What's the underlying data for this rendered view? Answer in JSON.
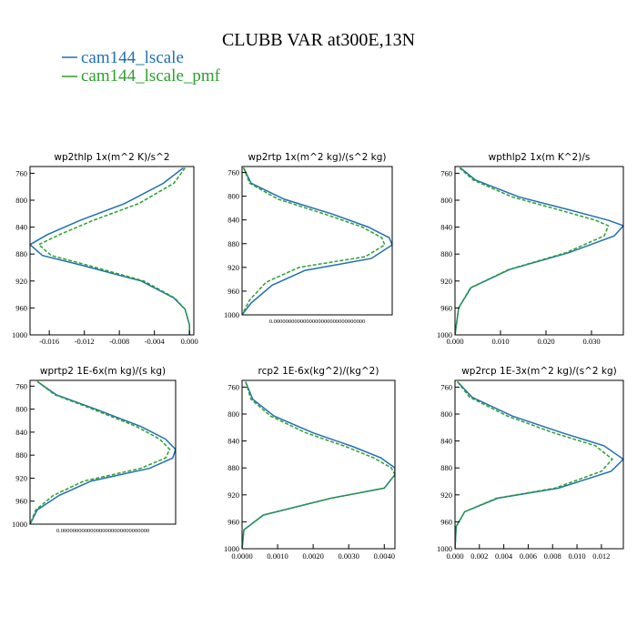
{
  "title": "CLUBB VAR at300E,13N",
  "legend": [
    {
      "name": "cam144_lscale",
      "color": "#1f6fb4"
    },
    {
      "name": "cam144_lscale_pmf",
      "color": "#2ca02c"
    }
  ],
  "chart_data": [
    {
      "type": "line",
      "title": "wp2thlp  1x(m^2 K)/s^2",
      "yticks": [
        "760",
        "800",
        "840",
        "880",
        "920",
        "960",
        "1000"
      ],
      "xticks": [
        "-0.016",
        "-0.012",
        "-0.008",
        "-0.004",
        "0.000"
      ],
      "xlim": [
        -0.0182,
        0.0005
      ],
      "ylim": [
        1000,
        750
      ],
      "series": [
        {
          "name": "cam144_lscale",
          "points": [
            [
              -0.0007,
              752
            ],
            [
              -0.003,
              775
            ],
            [
              -0.0074,
              805
            ],
            [
              -0.0125,
              830
            ],
            [
              -0.0162,
              851
            ],
            [
              -0.0182,
              866
            ],
            [
              -0.0168,
              882
            ],
            [
              -0.0125,
              896
            ],
            [
              -0.0055,
              920
            ],
            [
              -0.0018,
              945
            ],
            [
              -0.0005,
              962
            ],
            [
              0.0,
              985
            ],
            [
              0.0,
              1000
            ]
          ]
        },
        {
          "name": "cam144_lscale_pmf",
          "points": [
            [
              -0.0005,
              752
            ],
            [
              -0.0018,
              775
            ],
            [
              -0.0058,
              805
            ],
            [
              -0.011,
              830
            ],
            [
              -0.0148,
              851
            ],
            [
              -0.0172,
              866
            ],
            [
              -0.0158,
              882
            ],
            [
              -0.0118,
              896
            ],
            [
              -0.0052,
              920
            ],
            [
              -0.0017,
              945
            ],
            [
              -0.0005,
              962
            ],
            [
              0.0,
              985
            ],
            [
              0.0,
              1000
            ]
          ]
        }
      ]
    },
    {
      "type": "line",
      "title": "wp2rtp  1x(m^2 kg)/(s^2 kg)",
      "yticks": [
        "760",
        "800",
        "840",
        "880",
        "920",
        "960",
        "1000"
      ],
      "xticks": [
        "0.0000000000000000000000000000000"
      ],
      "xlim": [
        0,
        1
      ],
      "ylim": [
        1000,
        750
      ],
      "series": [
        {
          "name": "cam144_lscale",
          "points": [
            [
              0.01,
              752
            ],
            [
              0.06,
              778
            ],
            [
              0.28,
              805
            ],
            [
              0.6,
              830
            ],
            [
              0.84,
              852
            ],
            [
              0.98,
              870
            ],
            [
              1.0,
              882
            ],
            [
              0.86,
              905
            ],
            [
              0.42,
              925
            ],
            [
              0.2,
              950
            ],
            [
              0.06,
              980
            ],
            [
              0.0,
              1000
            ]
          ]
        },
        {
          "name": "cam144_lscale_pmf",
          "points": [
            [
              0.01,
              752
            ],
            [
              0.05,
              778
            ],
            [
              0.24,
              805
            ],
            [
              0.55,
              830
            ],
            [
              0.8,
              852
            ],
            [
              0.93,
              870
            ],
            [
              0.95,
              882
            ],
            [
              0.82,
              902
            ],
            [
              0.38,
              920
            ],
            [
              0.16,
              945
            ],
            [
              0.05,
              975
            ],
            [
              0.0,
              1000
            ]
          ]
        }
      ]
    },
    {
      "type": "line",
      "title": "wpthlp2  1x(m K^2)/s",
      "yticks": [
        "760",
        "800",
        "840",
        "880",
        "920",
        "960",
        "1000"
      ],
      "xticks": [
        "0.000",
        "0.010",
        "0.020",
        "0.030"
      ],
      "xlim": [
        0,
        0.037
      ],
      "ylim": [
        1000,
        750
      ],
      "series": [
        {
          "name": "cam144_lscale",
          "points": [
            [
              0.0012,
              752
            ],
            [
              0.0045,
              770
            ],
            [
              0.014,
              795
            ],
            [
              0.0255,
              815
            ],
            [
              0.0338,
              830
            ],
            [
              0.037,
              838
            ],
            [
              0.035,
              853
            ],
            [
              0.025,
              878
            ],
            [
              0.012,
              903
            ],
            [
              0.0035,
              930
            ],
            [
              0.0008,
              960
            ],
            [
              0.0,
              1000
            ]
          ]
        },
        {
          "name": "cam144_lscale_pmf",
          "points": [
            [
              0.001,
              752
            ],
            [
              0.004,
              770
            ],
            [
              0.0125,
              795
            ],
            [
              0.0232,
              815
            ],
            [
              0.031,
              830
            ],
            [
              0.0337,
              838
            ],
            [
              0.0328,
              853
            ],
            [
              0.0244,
              878
            ],
            [
              0.0118,
              903
            ],
            [
              0.0034,
              930
            ],
            [
              0.0008,
              960
            ],
            [
              0.0,
              1000
            ]
          ]
        }
      ]
    },
    {
      "type": "line",
      "title": "wprtp2  1E-6x(m kg)/(s kg)",
      "yticks": [
        "760",
        "800",
        "840",
        "880",
        "920",
        "960",
        "1000"
      ],
      "xticks": [
        "0.000000000000000000000000000000"
      ],
      "xlim": [
        0,
        1
      ],
      "ylim": [
        1000,
        750
      ],
      "series": [
        {
          "name": "cam144_lscale",
          "points": [
            [
              0.05,
              752
            ],
            [
              0.18,
              775
            ],
            [
              0.45,
              800
            ],
            [
              0.76,
              830
            ],
            [
              0.93,
              852
            ],
            [
              1.0,
              870
            ],
            [
              0.98,
              885
            ],
            [
              0.82,
              903
            ],
            [
              0.42,
              925
            ],
            [
              0.2,
              950
            ],
            [
              0.05,
              975
            ],
            [
              0.0,
              1000
            ]
          ]
        },
        {
          "name": "cam144_lscale_pmf",
          "points": [
            [
              0.05,
              752
            ],
            [
              0.17,
              775
            ],
            [
              0.43,
              800
            ],
            [
              0.73,
              830
            ],
            [
              0.89,
              852
            ],
            [
              0.96,
              870
            ],
            [
              0.93,
              885
            ],
            [
              0.76,
              903
            ],
            [
              0.37,
              925
            ],
            [
              0.16,
              950
            ],
            [
              0.04,
              975
            ],
            [
              0.0,
              1000
            ]
          ]
        }
      ]
    },
    {
      "type": "line",
      "title": "rcp2  1E-6x(kg^2)/(kg^2)",
      "yticks": [
        "760",
        "800",
        "840",
        "880",
        "920",
        "960",
        "1000"
      ],
      "xticks": [
        "0.0000",
        "0.0010",
        "0.0020",
        "0.0030",
        "0.0040"
      ],
      "xlim": [
        0,
        0.0043
      ],
      "ylim": [
        1000,
        750
      ],
      "series": [
        {
          "name": "cam144_lscale",
          "points": [
            [
              0.0001,
              752
            ],
            [
              0.0003,
              778
            ],
            [
              0.0009,
              803
            ],
            [
              0.002,
              828
            ],
            [
              0.0031,
              848
            ],
            [
              0.0039,
              865
            ],
            [
              0.0043,
              880
            ],
            [
              0.0043,
              890
            ],
            [
              0.004,
              910
            ],
            [
              0.0025,
              925
            ],
            [
              0.0006,
              950
            ],
            [
              5e-05,
              972
            ],
            [
              0.0,
              1000
            ]
          ]
        },
        {
          "name": "cam144_lscale_pmf",
          "points": [
            [
              0.0001,
              752
            ],
            [
              0.00025,
              778
            ],
            [
              0.0008,
              803
            ],
            [
              0.0018,
              828
            ],
            [
              0.0029,
              848
            ],
            [
              0.0037,
              865
            ],
            [
              0.0042,
              880
            ],
            [
              0.0043,
              890
            ],
            [
              0.004,
              910
            ],
            [
              0.0025,
              925
            ],
            [
              0.0006,
              950
            ],
            [
              5e-05,
              972
            ],
            [
              0.0,
              1000
            ]
          ]
        }
      ]
    },
    {
      "type": "line",
      "title": "wp2rcp  1E-3x(m^2 kg)/(s^2 kg)",
      "yticks": [
        "760",
        "800",
        "840",
        "880",
        "920",
        "960",
        "1000"
      ],
      "xticks": [
        "0.000",
        "0.002",
        "0.004",
        "0.006",
        "0.008",
        "0.010",
        "0.012"
      ],
      "xlim": [
        0,
        0.0138
      ],
      "ylim": [
        1000,
        750
      ],
      "series": [
        {
          "name": "cam144_lscale",
          "points": [
            [
              0.0002,
              752
            ],
            [
              0.0014,
              775
            ],
            [
              0.0047,
              803
            ],
            [
              0.0088,
              828
            ],
            [
              0.0122,
              847
            ],
            [
              0.0138,
              867
            ],
            [
              0.0128,
              885
            ],
            [
              0.0085,
              910
            ],
            [
              0.0035,
              925
            ],
            [
              0.0008,
              945
            ],
            [
              0.0001,
              967
            ],
            [
              0.0,
              1000
            ]
          ]
        },
        {
          "name": "cam144_lscale_pmf",
          "points": [
            [
              0.0002,
              752
            ],
            [
              0.0012,
              775
            ],
            [
              0.0043,
              803
            ],
            [
              0.0081,
              828
            ],
            [
              0.0115,
              847
            ],
            [
              0.0129,
              867
            ],
            [
              0.012,
              885
            ],
            [
              0.0082,
              910
            ],
            [
              0.0034,
              925
            ],
            [
              0.0008,
              945
            ],
            [
              0.0001,
              967
            ],
            [
              0.0,
              1000
            ]
          ]
        }
      ]
    }
  ]
}
